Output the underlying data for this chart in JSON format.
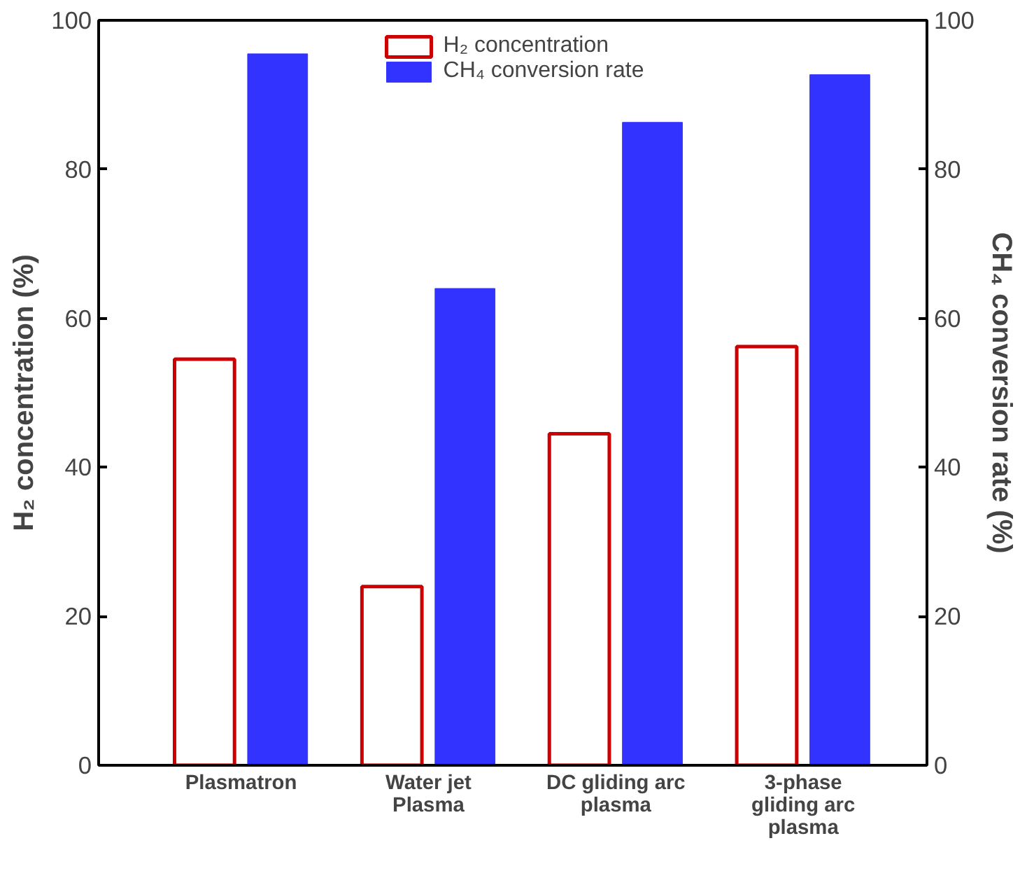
{
  "chart_data": {
    "type": "bar",
    "categories": [
      "Plasmatron",
      "Water jet\nPlasma",
      "DC gliding arc\nplasma",
      "3-phase\ngliding arc\nplasma"
    ],
    "series": [
      {
        "name": "H₂ concentration",
        "color": "#cc0000",
        "values": [
          54.5,
          24,
          44.5,
          56.2
        ]
      },
      {
        "name": "CH₄ conversion rate",
        "color": "#3333ff",
        "values": [
          95.5,
          64,
          86.3,
          92.7
        ],
        "axis": "y2"
      }
    ],
    "ylabel": "H₂ concentration (%)",
    "y2label": "CH₄ conversion rate (%)",
    "ylim": [
      0,
      100
    ],
    "yticks": [
      0,
      20,
      40,
      60,
      80,
      100
    ],
    "y2lim": [
      0,
      100
    ],
    "y2ticks": [
      0,
      20,
      40,
      60,
      80,
      100
    ],
    "grid": false,
    "legend": "top"
  }
}
